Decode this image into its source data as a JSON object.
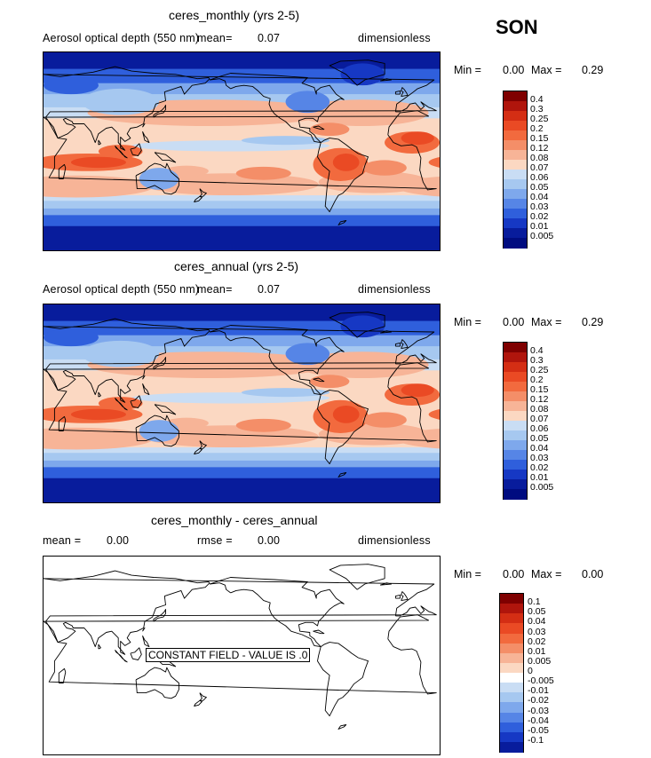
{
  "season": "SON",
  "chart_data": [
    {
      "type": "heatmap",
      "title": "ceres_monthly (yrs 2-5)",
      "subtitle": "Aerosol optical depth (550 nm)",
      "mean_label": "mean=",
      "mean_value": "0.07",
      "units": "dimensionless",
      "min_label": "Min =",
      "min_value": "0.00",
      "max_label": "Max =",
      "max_value": "0.29",
      "colorbar_levels": [
        "0.4",
        "0.3",
        "0.25",
        "0.2",
        "0.15",
        "0.12",
        "0.08",
        "0.07",
        "0.06",
        "0.05",
        "0.04",
        "0.03",
        "0.02",
        "0.01",
        "0.005"
      ],
      "colorbar_colors": [
        "#7f0000",
        "#b0150c",
        "#d42e14",
        "#ea4a24",
        "#f26a3e",
        "#f48e68",
        "#f7b497",
        "#fbd8c2",
        "#c9ddf4",
        "#a6c8f0",
        "#7ea8ec",
        "#5685e6",
        "#2f5fdc",
        "#1638c4",
        "#081c9c",
        "#000c80"
      ]
    },
    {
      "type": "heatmap",
      "title": "ceres_annual (yrs 2-5)",
      "subtitle": "Aerosol optical depth (550 nm)",
      "mean_label": "mean=",
      "mean_value": "0.07",
      "units": "dimensionless",
      "min_label": "Min =",
      "min_value": "0.00",
      "max_label": "Max =",
      "max_value": "0.29",
      "colorbar_levels": [
        "0.4",
        "0.3",
        "0.25",
        "0.2",
        "0.15",
        "0.12",
        "0.08",
        "0.07",
        "0.06",
        "0.05",
        "0.04",
        "0.03",
        "0.02",
        "0.01",
        "0.005"
      ],
      "colorbar_colors": [
        "#7f0000",
        "#b0150c",
        "#d42e14",
        "#ea4a24",
        "#f26a3e",
        "#f48e68",
        "#f7b497",
        "#fbd8c2",
        "#c9ddf4",
        "#a6c8f0",
        "#7ea8ec",
        "#5685e6",
        "#2f5fdc",
        "#1638c4",
        "#081c9c",
        "#000c80"
      ]
    },
    {
      "type": "heatmap",
      "title": "ceres_monthly - ceres_annual",
      "mean_label": "mean =",
      "mean_value": "0.00",
      "rmse_label": "rmse =",
      "rmse_value": "0.00",
      "units": "dimensionless",
      "min_label": "Min =",
      "min_value": "0.00",
      "max_label": "Max =",
      "max_value": "0.00",
      "annotation": "CONSTANT FIELD - VALUE IS .0",
      "colorbar_levels": [
        "0.1",
        "0.05",
        "0.04",
        "0.03",
        "0.02",
        "0.01",
        "0.005",
        "0",
        "-0.005",
        "-0.01",
        "-0.02",
        "-0.03",
        "-0.04",
        "-0.05",
        "-0.1"
      ],
      "colorbar_colors": [
        "#7f0000",
        "#b0150c",
        "#d42e14",
        "#ea4a24",
        "#f26a3e",
        "#f48e68",
        "#f7b497",
        "#fbd8c2",
        "#ffffff",
        "#c9ddf4",
        "#a6c8f0",
        "#7ea8ec",
        "#5685e6",
        "#2f5fdc",
        "#1638c4",
        "#081c9c"
      ]
    }
  ]
}
